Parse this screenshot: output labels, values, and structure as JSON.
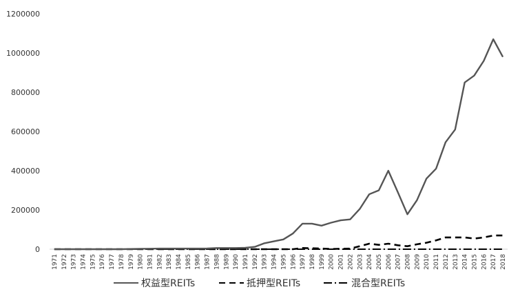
{
  "chart_data": {
    "type": "line",
    "title": "",
    "xlabel": "",
    "ylabel": "",
    "ylim": [
      0,
      1200000
    ],
    "yticks": [
      0,
      200000,
      400000,
      600000,
      800000,
      1000000,
      1200000
    ],
    "ytick_labels": [
      "0",
      "200000",
      "400000",
      "600000",
      "800000",
      "1000000",
      "1200000"
    ],
    "grid": false,
    "legend_position": "bottom",
    "x": [
      "1971",
      "1972",
      "1973",
      "1974",
      "1975",
      "1976",
      "1977",
      "1978",
      "1979",
      "1980",
      "1981",
      "1982",
      "1983",
      "1984",
      "1985",
      "1986",
      "1987",
      "1988",
      "1989",
      "1990",
      "1991",
      "1992",
      "1993",
      "1994",
      "1995",
      "1996",
      "1997",
      "1998",
      "1999",
      "2000",
      "2001",
      "2002",
      "2003",
      "2004",
      "2005",
      "2006",
      "2007",
      "2008",
      "2009",
      "2010",
      "2011",
      "2012",
      "2013",
      "2014",
      "2015",
      "2016",
      "2017",
      "2018"
    ],
    "series": [
      {
        "name": "权益型REITs",
        "style": "solid",
        "color": "#555555",
        "values": [
          0,
          0,
          0,
          0,
          0,
          0,
          0,
          0,
          1000,
          2000,
          2500,
          3000,
          3000,
          3000,
          3000,
          3000,
          4000,
          6000,
          6000,
          6000,
          7000,
          12000,
          30000,
          40000,
          50000,
          80000,
          130000,
          130000,
          120000,
          135000,
          147000,
          152000,
          205000,
          280000,
          300000,
          400000,
          290000,
          178000,
          250000,
          360000,
          410000,
          545000,
          610000,
          850000,
          885000,
          960000,
          1070000,
          980000
        ]
      },
      {
        "name": "抵押型REITs",
        "style": "dashed",
        "color": "#000000",
        "values": [
          0,
          0,
          0,
          0,
          0,
          0,
          0,
          0,
          0,
          0,
          0,
          0,
          0,
          0,
          0,
          0,
          0,
          0,
          0,
          0,
          0,
          0,
          0,
          0,
          0,
          0,
          6000,
          5000,
          3000,
          1000,
          2000,
          3000,
          15000,
          28000,
          22000,
          28000,
          20000,
          15000,
          25000,
          33000,
          45000,
          60000,
          60000,
          60000,
          54000,
          60000,
          70000,
          70000
        ]
      },
      {
        "name": "混合型REITs",
        "style": "dashdot",
        "color": "#000000",
        "values": [
          0,
          0,
          0,
          0,
          0,
          0,
          0,
          0,
          0,
          0,
          0,
          0,
          0,
          0,
          0,
          0,
          0,
          0,
          0,
          0,
          0,
          0,
          0,
          0,
          0,
          0,
          0,
          0,
          0,
          0,
          0,
          0,
          0,
          0,
          0,
          0,
          0,
          0,
          0,
          0,
          0,
          0,
          0,
          0,
          0,
          0,
          0,
          0
        ]
      }
    ]
  }
}
